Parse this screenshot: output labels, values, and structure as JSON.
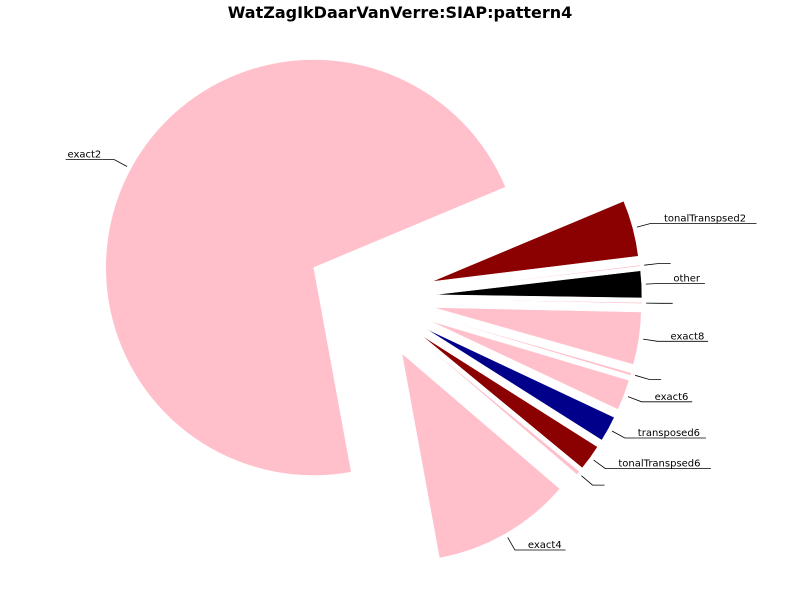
{
  "chart_data": {
    "type": "pie",
    "title": "WatZagIkDaarVanVerre:SIAP:pattern4",
    "slices": [
      {
        "label": "tonalTranspsed2",
        "value": 4.4,
        "color": "#8b0000"
      },
      {
        "label": "exact2",
        "value": 72.0,
        "color": "#ffc0cb"
      },
      {
        "label": "exact4",
        "value": 10.9,
        "color": "#ffc0cb"
      },
      {
        "label": "",
        "value": 0.3,
        "color": "#ffc0cb"
      },
      {
        "label": "tonalTranspsed6",
        "value": 2.0,
        "color": "#8b0000"
      },
      {
        "label": "transposed6",
        "value": 2.0,
        "color": "#00008b"
      },
      {
        "label": "exact6",
        "value": 2.4,
        "color": "#ffc0cb"
      },
      {
        "label": "",
        "value": 0.2,
        "color": "#ffc0cb"
      },
      {
        "label": "exact8",
        "value": 4.1,
        "color": "#ffc0cb"
      },
      {
        "label": "",
        "value": 0.1,
        "color": "#ffc0cb"
      },
      {
        "label": "other",
        "value": 2.1,
        "color": "#000000"
      },
      {
        "label": "",
        "value": 0.1,
        "color": "#ffc0cb"
      }
    ]
  }
}
